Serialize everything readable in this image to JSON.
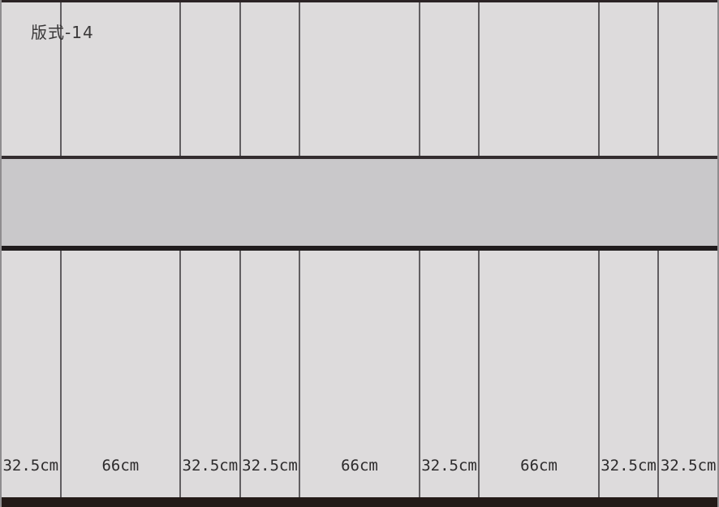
{
  "title": "版式-14",
  "unit": "cm",
  "panels": {
    "widths_cm": [
      32.5,
      66,
      32.5,
      32.5,
      66,
      32.5,
      66,
      32.5,
      32.5
    ],
    "labels": [
      "32.5cm",
      "66cm",
      "32.5cm",
      "32.5cm",
      "66cm",
      "32.5cm",
      "66cm",
      "32.5cm",
      "32.5cm"
    ]
  },
  "colors": {
    "panel_bg": "#dddbdc",
    "band_bg": "#c9c8ca",
    "divider": "#615e61",
    "frame_dark": "#2b2325",
    "band_border_top": "#332d2f",
    "band_border_bottom": "#1f1b1c",
    "bottom_bar": "#241b18",
    "edge": "#8f8d8f",
    "label_text": "#2d2b2c",
    "title_text": "#3a3839"
  }
}
